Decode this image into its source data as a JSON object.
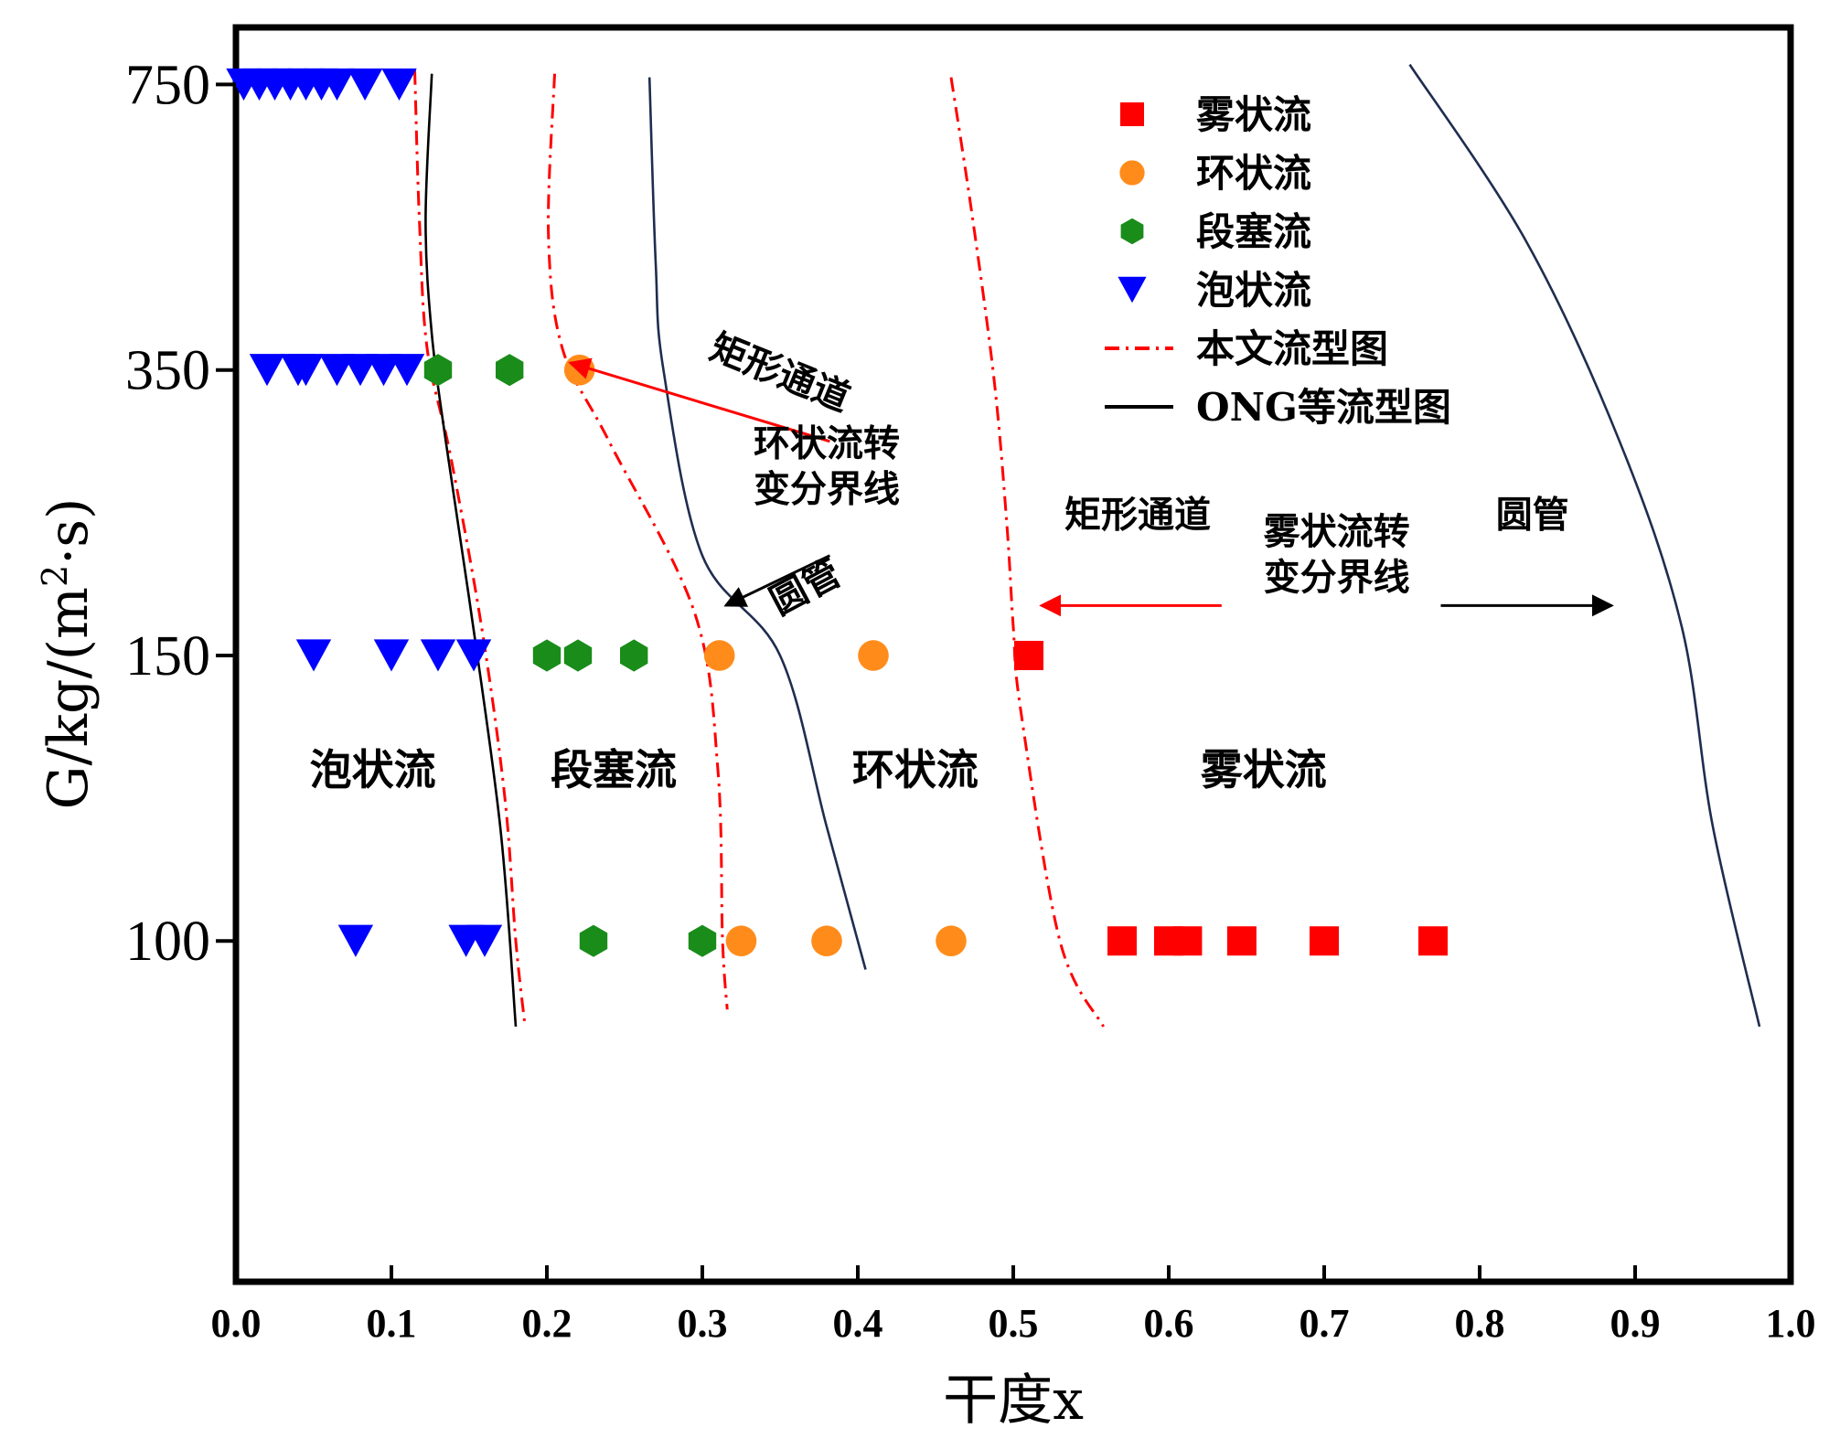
{
  "chart_data": {
    "type": "scatter",
    "title": "",
    "xlabel": "干度x",
    "ylabel": "G/kg/(m²·s)",
    "ylabel_main": "G/kg/(m",
    "ylabel_sup": "2",
    "ylabel_tail": "·s)",
    "xlim": [
      0.0,
      1.0
    ],
    "x_ticks": [
      "0.0",
      "0.1",
      "0.2",
      "0.3",
      "0.4",
      "0.5",
      "0.6",
      "0.7",
      "0.8",
      "0.9",
      "1.0"
    ],
    "y_ticks": [
      "750",
      "350",
      "150",
      "100"
    ],
    "y_scale": "categorical",
    "grid": false,
    "legend_position": "top-right",
    "series": [
      {
        "name": "雾状流",
        "marker": "square",
        "color": "#ff0000",
        "points": [
          [
            0.51,
            150
          ],
          [
            0.57,
            100
          ],
          [
            0.6,
            100
          ],
          [
            0.612,
            100
          ],
          [
            0.647,
            100
          ],
          [
            0.7,
            100
          ],
          [
            0.77,
            100
          ]
        ]
      },
      {
        "name": "环状流",
        "marker": "circle",
        "color": "#ff8c1a",
        "points": [
          [
            0.221,
            350
          ],
          [
            0.311,
            150
          ],
          [
            0.41,
            150
          ],
          [
            0.325,
            100
          ],
          [
            0.38,
            100
          ],
          [
            0.46,
            100
          ]
        ]
      },
      {
        "name": "段塞流",
        "marker": "hexagon",
        "color": "#1a8c1a",
        "points": [
          [
            0.13,
            350
          ],
          [
            0.176,
            350
          ],
          [
            0.2,
            150
          ],
          [
            0.22,
            150
          ],
          [
            0.256,
            150
          ],
          [
            0.23,
            100
          ],
          [
            0.3,
            100
          ]
        ]
      },
      {
        "name": "泡状流",
        "marker": "triangle-down",
        "color": "#0000ff",
        "points": [
          [
            0.005,
            750
          ],
          [
            0.015,
            750
          ],
          [
            0.025,
            750
          ],
          [
            0.035,
            750
          ],
          [
            0.045,
            750
          ],
          [
            0.055,
            750
          ],
          [
            0.065,
            750
          ],
          [
            0.083,
            750
          ],
          [
            0.105,
            750
          ],
          [
            0.02,
            350
          ],
          [
            0.04,
            350
          ],
          [
            0.045,
            350
          ],
          [
            0.065,
            350
          ],
          [
            0.08,
            350
          ],
          [
            0.095,
            350
          ],
          [
            0.11,
            350
          ],
          [
            0.05,
            150
          ],
          [
            0.1,
            150
          ],
          [
            0.13,
            150
          ],
          [
            0.153,
            150
          ],
          [
            0.077,
            100
          ],
          [
            0.148,
            100
          ],
          [
            0.16,
            100
          ]
        ]
      }
    ],
    "lines": [
      {
        "name": "本文流型图",
        "style": "dash-dot",
        "color": "#ff0000",
        "curves": [
          [
            [
              0.115,
              770
            ],
            [
              0.118,
              560
            ],
            [
              0.123,
              380
            ],
            [
              0.138,
              290
            ],
            [
              0.158,
              170
            ],
            [
              0.173,
              125
            ],
            [
              0.18,
              100
            ],
            [
              0.186,
              85
            ]
          ],
          [
            [
              0.205,
              765
            ],
            [
              0.201,
              540
            ],
            [
              0.21,
              380
            ],
            [
              0.24,
              300
            ],
            [
              0.295,
              180
            ],
            [
              0.31,
              130
            ],
            [
              0.313,
              100
            ],
            [
              0.316,
              88
            ]
          ],
          [
            [
              0.46,
              760
            ],
            [
              0.474,
              560
            ],
            [
              0.488,
              340
            ],
            [
              0.496,
              240
            ],
            [
              0.5,
              170
            ],
            [
              0.505,
              140
            ],
            [
              0.53,
              100
            ],
            [
              0.558,
              85
            ]
          ]
        ]
      },
      {
        "name": "ONG等流型图",
        "style": "solid",
        "color": "#000000",
        "curves": [
          [
            [
              0.126,
              765
            ],
            [
              0.122,
              560
            ],
            [
              0.126,
              400
            ],
            [
              0.135,
              300
            ],
            [
              0.15,
              190
            ],
            [
              0.17,
              120
            ],
            [
              0.18,
              85
            ]
          ]
        ]
      },
      {
        "name": "",
        "style": "solid",
        "color": "#1f2d4f",
        "curves": [
          [
            [
              0.266,
              760
            ],
            [
              0.27,
              500
            ],
            [
              0.275,
              350
            ],
            [
              0.3,
              220
            ],
            [
              0.35,
              150
            ],
            [
              0.38,
              120
            ],
            [
              0.405,
              95
            ]
          ],
          [
            [
              0.755,
              778
            ],
            [
              0.83,
              530
            ],
            [
              0.89,
              300
            ],
            [
              0.93,
              170
            ],
            [
              0.95,
              120
            ],
            [
              0.98,
              85
            ]
          ]
        ]
      }
    ],
    "region_labels": [
      {
        "text": "泡状流",
        "x": 0.088,
        "y": 130
      },
      {
        "text": "段塞流",
        "x": 0.243,
        "y": 130
      },
      {
        "text": "环状流",
        "x": 0.437,
        "y": 130
      },
      {
        "text": "雾状流",
        "x": 0.661,
        "y": 130
      }
    ],
    "annotations": [
      {
        "text": "矩形通道",
        "rotate": 22,
        "x": 0.347,
        "y": 340
      },
      {
        "lines": [
          "环状流转",
          "变分界线"
        ],
        "x": 0.38,
        "y": 290
      },
      {
        "text": "圆管",
        "rotate": -28,
        "x": 0.37,
        "y": 190
      },
      {
        "text": "矩形通道",
        "x": 0.58,
        "y": 240
      },
      {
        "lines": [
          "雾状流转",
          "变分界线"
        ],
        "x": 0.708,
        "y": 228
      },
      {
        "text": "圆管",
        "x": 0.834,
        "y": 240
      }
    ],
    "arrows": [
      {
        "color": "#ff0000",
        "from": [
          0.382,
          300
        ],
        "to": [
          0.215,
          360
        ]
      },
      {
        "color": "#000000",
        "from": [
          0.382,
          220
        ],
        "to": [
          0.315,
          185
        ]
      },
      {
        "color": "#ff0000",
        "from": [
          0.634,
          185
        ],
        "to": [
          0.518,
          185
        ]
      },
      {
        "color": "#000000",
        "from": [
          0.775,
          185
        ],
        "to": [
          0.885,
          185
        ]
      }
    ]
  }
}
